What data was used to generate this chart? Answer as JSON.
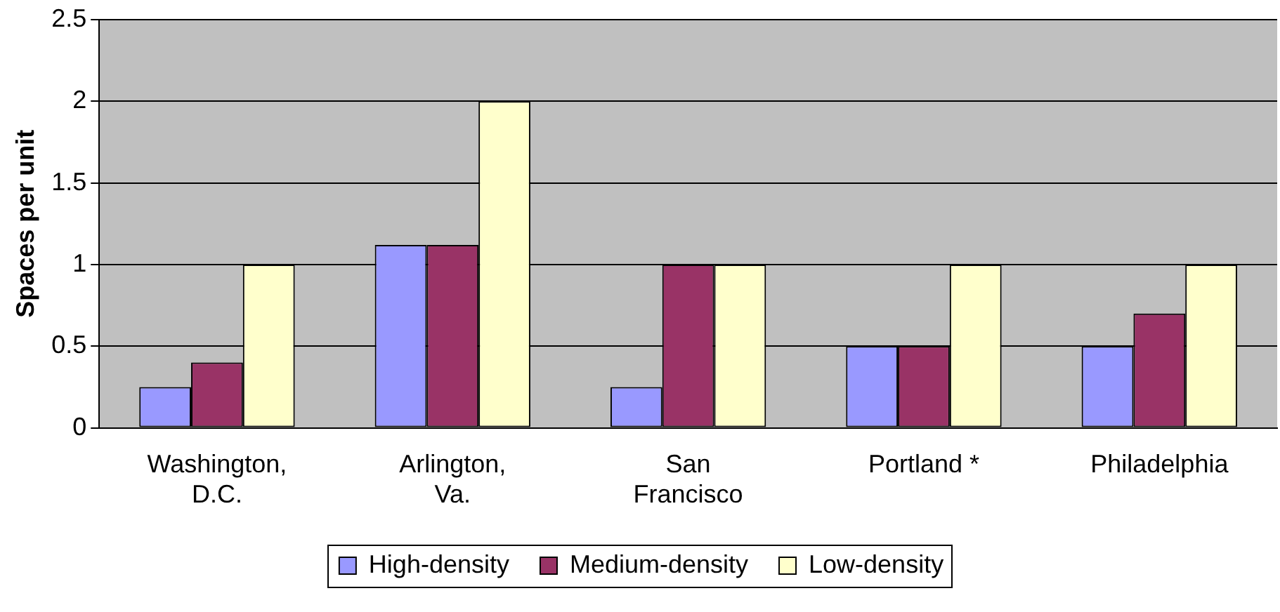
{
  "chart_data": {
    "type": "bar",
    "ylabel": "Spaces per unit",
    "categories": [
      "Washington,\nD.C.",
      "Arlington,\nVa.",
      "San\nFrancisco",
      "Portland *",
      "Philadelphia"
    ],
    "series": [
      {
        "name": "High-density",
        "color": "#9999ff",
        "values": [
          0.25,
          1.12,
          0.25,
          0.5,
          0.5
        ]
      },
      {
        "name": "Medium-density",
        "color": "#993366",
        "values": [
          0.4,
          1.12,
          1,
          0.5,
          0.7
        ]
      },
      {
        "name": "Low-density",
        "color": "#ffffcc",
        "values": [
          1,
          2,
          1,
          1,
          1
        ]
      }
    ],
    "ylim": [
      0,
      2.5
    ],
    "yticks": [
      0,
      0.5,
      1,
      1.5,
      2,
      2.5
    ],
    "grid": "y",
    "legend": "bottom"
  }
}
